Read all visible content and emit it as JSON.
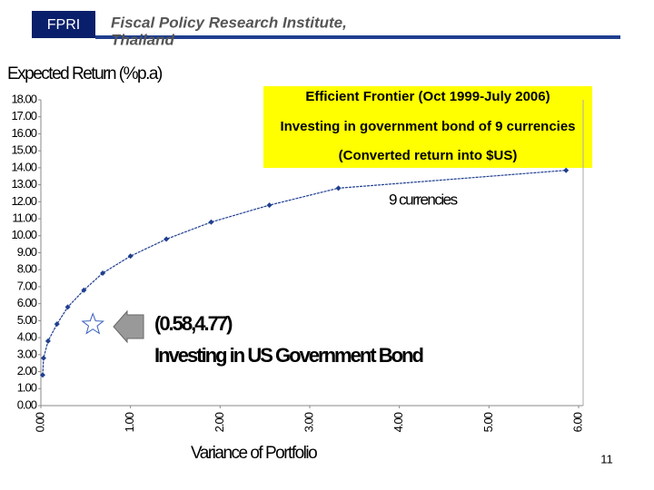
{
  "header": {
    "logo": "FPRI",
    "title": "Fiscal Policy Research Institute,",
    "subtitle": "Thailand"
  },
  "page_number": "11",
  "chart_data": {
    "type": "line",
    "y_label": "Expected Return (%p.a)",
    "x_label": "Variance of Portfolio",
    "annotation": [
      "Efficient Frontier (Oct 1999-July 2006)",
      "Investing in government bond of 9 currencies",
      "(Converted return into $US)"
    ],
    "series": [
      {
        "name": "9 currencies",
        "color": "#1f3f8f",
        "x": [
          0.02,
          0.03,
          0.08,
          0.18,
          0.3,
          0.48,
          0.69,
          1.0,
          1.4,
          1.9,
          2.55,
          3.32,
          5.86
        ],
        "values": [
          1.8,
          2.8,
          3.8,
          4.8,
          5.8,
          6.8,
          7.8,
          8.8,
          9.8,
          10.8,
          11.8,
          12.8,
          13.85
        ]
      }
    ],
    "highlight": {
      "x": 0.58,
      "y": 4.77,
      "label": "(0.58,4.77)",
      "text": "Investing in US Government Bond"
    },
    "xlim": [
      0,
      6
    ],
    "xticks": [
      {
        "value": 0,
        "label": "0.00"
      },
      {
        "value": 1,
        "label": "1.00"
      },
      {
        "value": 2,
        "label": "2.00"
      },
      {
        "value": 3,
        "label": "3.00"
      },
      {
        "value": 4,
        "label": "4.00"
      },
      {
        "value": 5,
        "label": "5.00"
      },
      {
        "value": 6,
        "label": "6.00"
      }
    ],
    "ylim": [
      0,
      18
    ],
    "yticks": [
      {
        "value": 0,
        "label": "0.00"
      },
      {
        "value": 1,
        "label": "1.00"
      },
      {
        "value": 2,
        "label": "2.00"
      },
      {
        "value": 3,
        "label": "3.00"
      },
      {
        "value": 4,
        "label": "4.00"
      },
      {
        "value": 5,
        "label": "5.00"
      },
      {
        "value": 6,
        "label": "6.00"
      },
      {
        "value": 7,
        "label": "7.00"
      },
      {
        "value": 8,
        "label": "8.00"
      },
      {
        "value": 9,
        "label": "9.00"
      },
      {
        "value": 10,
        "label": "10.00"
      },
      {
        "value": 11,
        "label": "11.00"
      },
      {
        "value": 12,
        "label": "12.00"
      },
      {
        "value": 13,
        "label": "13.00"
      },
      {
        "value": 14,
        "label": "14.00"
      },
      {
        "value": 15,
        "label": "15.00"
      },
      {
        "value": 16,
        "label": "16.00"
      },
      {
        "value": 17,
        "label": "17.00"
      },
      {
        "value": 18,
        "label": "18.00"
      }
    ]
  }
}
